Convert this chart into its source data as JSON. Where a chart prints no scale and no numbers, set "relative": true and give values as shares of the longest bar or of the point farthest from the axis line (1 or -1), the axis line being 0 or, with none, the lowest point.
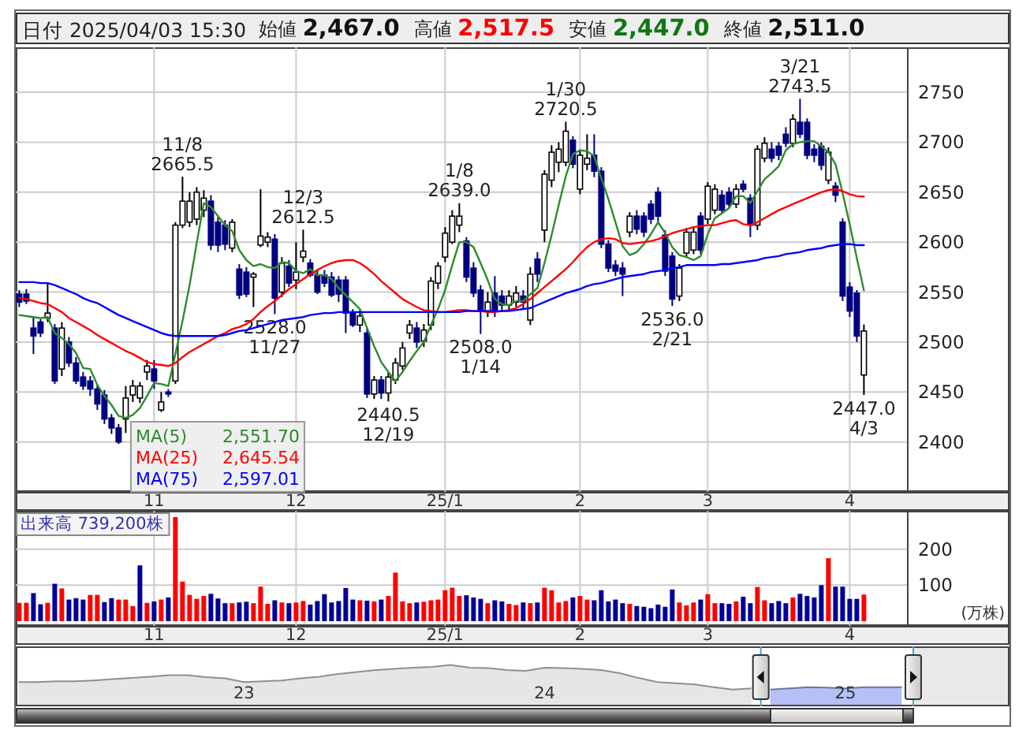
{
  "chart_data": [
    {
      "type": "candlestick",
      "title": "日付 2025/04/03 15:30",
      "annotations": [
        "始値 **2,467.0**",
        "高値 **2,517.5**",
        "安値 **2,447.0**",
        "終値 **2,511.0**",
        {
          "text": "11/8",
          "y": 2665.5
        },
        {
          "text": "2665.5",
          "y": 2665.5
        },
        {
          "text": "2528.0",
          "y": 2528.0
        },
        {
          "text": "11/27",
          "y": 2528.0
        },
        {
          "text": "12/3",
          "y": 2612.5
        },
        {
          "text": "2612.5",
          "y": 2612.5
        },
        {
          "text": "2440.5",
          "y": 2440.5
        },
        {
          "text": "12/19",
          "y": 2440.5
        },
        {
          "text": "1/8",
          "y": 2639.0
        },
        {
          "text": "2639.0",
          "y": 2639.0
        },
        {
          "text": "2508.0",
          "y": 2508.0
        },
        {
          "text": "1/14",
          "y": 2508.0
        },
        {
          "text": "1/30",
          "y": 2720.5
        },
        {
          "text": "2720.5",
          "y": 2720.5
        },
        {
          "text": "2536.0",
          "y": 2536.0
        },
        {
          "text": "2/21",
          "y": 2536.0
        },
        {
          "text": "3/21",
          "y": 2743.5
        },
        {
          "text": "2743.5",
          "y": 2743.5
        },
        {
          "text": "2447.0",
          "y": 2447.0
        },
        {
          "text": "4/3",
          "y": 2447.0
        }
      ],
      "categories": [
        null,
        null,
        null,
        null,
        null,
        null,
        null,
        null,
        null,
        null,
        null,
        null,
        null,
        null,
        null,
        null,
        null,
        null,
        null,
        "11",
        null,
        null,
        null,
        null,
        null,
        null,
        null,
        null,
        null,
        null,
        null,
        null,
        null,
        null,
        null,
        null,
        null,
        null,
        null,
        "12",
        null,
        null,
        null,
        null,
        null,
        null,
        null,
        null,
        null,
        null,
        null,
        null,
        null,
        null,
        null,
        null,
        null,
        null,
        null,
        null,
        "25/1",
        null,
        null,
        null,
        null,
        null,
        null,
        null,
        null,
        null,
        null,
        null,
        null,
        null,
        null,
        null,
        null,
        null,
        null,
        "2",
        null,
        null,
        null,
        null,
        null,
        null,
        null,
        null,
        null,
        null,
        null,
        null,
        null,
        null,
        null,
        null,
        null,
        "3",
        null,
        null,
        null,
        null,
        null,
        null,
        null,
        null,
        null,
        null,
        null,
        null,
        null,
        null,
        null,
        null,
        null,
        null,
        null,
        "4",
        null,
        null
      ],
      "ohlc": [
        [
          2548,
          2552,
          2535,
          2540
        ],
        [
          2548,
          2553,
          2538,
          2541
        ],
        [
          2514,
          2526,
          2488,
          2506
        ],
        [
          2520,
          2523,
          2505,
          2509
        ],
        [
          2524,
          2560,
          2520,
          2529
        ],
        [
          2514,
          2518,
          2458,
          2461
        ],
        [
          2473,
          2520,
          2466,
          2514
        ],
        [
          2500,
          2505,
          2475,
          2479
        ],
        [
          2479,
          2485,
          2458,
          2461
        ],
        [
          2465,
          2470,
          2452,
          2456
        ],
        [
          2461,
          2466,
          2446,
          2453
        ],
        [
          2453,
          2458,
          2432,
          2438
        ],
        [
          2447,
          2452,
          2418,
          2423
        ],
        [
          2424,
          2428,
          2408,
          2414
        ],
        [
          2414,
          2418,
          2398,
          2400
        ],
        [
          2423,
          2456,
          2409,
          2444
        ],
        [
          2447,
          2462,
          2440,
          2456
        ],
        [
          2444,
          2460,
          2439,
          2456
        ],
        [
          2470,
          2482,
          2462,
          2476
        ],
        [
          2473,
          2482,
          2453,
          2461
        ],
        [
          2432,
          2450,
          2430,
          2440
        ],
        [
          2450,
          2453,
          2445,
          2448
        ],
        [
          2461,
          2620,
          2458,
          2617
        ],
        [
          2617,
          2665.5,
          2614,
          2641
        ],
        [
          2620,
          2650,
          2615,
          2641
        ],
        [
          2623,
          2655,
          2617,
          2650
        ],
        [
          2632,
          2652,
          2625,
          2644
        ],
        [
          2641,
          2647,
          2592,
          2597
        ],
        [
          2620,
          2625,
          2590,
          2597
        ],
        [
          2617,
          2622,
          2592,
          2598
        ],
        [
          2594,
          2623,
          2590,
          2620
        ],
        [
          2573,
          2578,
          2543,
          2547
        ],
        [
          2570,
          2575,
          2545,
          2548
        ],
        [
          2565,
          2570,
          2535,
          2568
        ],
        [
          2597,
          2653,
          2595,
          2606
        ],
        [
          2600,
          2610,
          2595,
          2605
        ],
        [
          2603,
          2608,
          2528.0,
          2544
        ],
        [
          2550,
          2585,
          2545,
          2579
        ],
        [
          2576,
          2582,
          2555,
          2559
        ],
        [
          2562,
          2600,
          2553,
          2570
        ],
        [
          2585,
          2612.5,
          2580,
          2591
        ],
        [
          2579,
          2583,
          2565,
          2567
        ],
        [
          2567,
          2572,
          2548,
          2550
        ],
        [
          2567,
          2572,
          2555,
          2559
        ],
        [
          2565,
          2570,
          2545,
          2547
        ],
        [
          2562,
          2566,
          2540,
          2548
        ],
        [
          2562,
          2566,
          2509,
          2529
        ],
        [
          2529,
          2533,
          2515,
          2517
        ],
        [
          2517,
          2532,
          2510,
          2526
        ],
        [
          2509,
          2514,
          2444,
          2448
        ],
        [
          2448,
          2466,
          2443,
          2462
        ],
        [
          2462,
          2466,
          2443,
          2449
        ],
        [
          2449,
          2470,
          2440.5,
          2465
        ],
        [
          2462,
          2484,
          2458,
          2479
        ],
        [
          2476,
          2500,
          2472,
          2494
        ],
        [
          2509,
          2522,
          2503,
          2517
        ],
        [
          2514,
          2520,
          2494,
          2500
        ],
        [
          2501,
          2518,
          2495,
          2512
        ],
        [
          2517,
          2565,
          2512,
          2561
        ],
        [
          2559,
          2580,
          2553,
          2576
        ],
        [
          2585,
          2615,
          2580,
          2609
        ],
        [
          2600,
          2632,
          2598,
          2626
        ],
        [
          2617,
          2639.0,
          2610,
          2626
        ],
        [
          2601,
          2605,
          2560,
          2565
        ],
        [
          2574,
          2580,
          2545,
          2549
        ],
        [
          2552,
          2557,
          2508.0,
          2531
        ],
        [
          2531,
          2550,
          2525,
          2540
        ],
        [
          2549,
          2566,
          2525,
          2531
        ],
        [
          2546,
          2552,
          2530,
          2537
        ],
        [
          2537,
          2552,
          2532,
          2546
        ],
        [
          2540,
          2556,
          2535,
          2549
        ],
        [
          2546,
          2552,
          2533,
          2540
        ],
        [
          2522,
          2575,
          2517,
          2568
        ],
        [
          2583,
          2590,
          2560,
          2568
        ],
        [
          2612,
          2672,
          2600,
          2668
        ],
        [
          2662,
          2697,
          2655,
          2690
        ],
        [
          2680,
          2700,
          2670,
          2693
        ],
        [
          2680,
          2720.5,
          2676,
          2711
        ],
        [
          2702,
          2706,
          2674,
          2678
        ],
        [
          2653,
          2692,
          2648,
          2687
        ],
        [
          2678,
          2708,
          2672,
          2684
        ],
        [
          2687,
          2708,
          2665,
          2671
        ],
        [
          2671,
          2675,
          2594,
          2598
        ],
        [
          2598,
          2602,
          2570,
          2574
        ],
        [
          2577,
          2582,
          2566,
          2571
        ],
        [
          2574,
          2580,
          2546,
          2568
        ],
        [
          2610,
          2630,
          2605,
          2626
        ],
        [
          2626,
          2632,
          2608,
          2613
        ],
        [
          2626,
          2630,
          2605,
          2610
        ],
        [
          2638,
          2642,
          2618,
          2623
        ],
        [
          2650,
          2655,
          2620,
          2626
        ],
        [
          2607,
          2612,
          2566,
          2571
        ],
        [
          2586,
          2590,
          2536.0,
          2543
        ],
        [
          2546,
          2578,
          2541,
          2574
        ],
        [
          2589,
          2614,
          2585,
          2610
        ],
        [
          2592,
          2615,
          2588,
          2610
        ],
        [
          2626,
          2630,
          2588,
          2592
        ],
        [
          2623,
          2660,
          2618,
          2656
        ],
        [
          2632,
          2658,
          2628,
          2653
        ],
        [
          2647,
          2652,
          2628,
          2632
        ],
        [
          2650,
          2655,
          2634,
          2638
        ],
        [
          2638,
          2658,
          2634,
          2653
        ],
        [
          2658,
          2662,
          2650,
          2653
        ],
        [
          2644,
          2648,
          2605,
          2617
        ],
        [
          2617,
          2697,
          2612,
          2693
        ],
        [
          2684,
          2705,
          2680,
          2699
        ],
        [
          2693,
          2700,
          2680,
          2684
        ],
        [
          2696,
          2700,
          2682,
          2687
        ],
        [
          2708,
          2715,
          2695,
          2699
        ],
        [
          2699,
          2728,
          2695,
          2723
        ],
        [
          2720,
          2743.5,
          2704,
          2708
        ],
        [
          2720,
          2724,
          2683,
          2687
        ],
        [
          2693,
          2698,
          2680,
          2687
        ],
        [
          2696,
          2700,
          2672,
          2677
        ],
        [
          2662,
          2695,
          2658,
          2690
        ],
        [
          2656,
          2660,
          2640,
          2647
        ],
        [
          2620,
          2624,
          2541,
          2546
        ],
        [
          2555,
          2560,
          2525,
          2531
        ],
        [
          2549,
          2552,
          2500,
          2506
        ],
        [
          2467.0,
          2517.5,
          2447.0,
          2511.0
        ]
      ],
      "series": [
        {
          "name": "MA(5)    2,551.70",
          "type": "line",
          "color": "#2e8b2e",
          "values": [
            2527,
            2526,
            2525,
            2524,
            2525,
            2509,
            2504,
            2498,
            2489,
            2474,
            2473,
            2457,
            2446,
            2437,
            2426,
            2424,
            2427,
            2434,
            2446,
            2459,
            2458,
            2456,
            2488,
            2521,
            2557,
            2599,
            2639,
            2635,
            2626,
            2617,
            2611,
            2592,
            2582,
            2576,
            2578,
            2575,
            2574,
            2580,
            2579,
            2571,
            2569,
            2573,
            2567,
            2567,
            2563,
            2554,
            2547,
            2540,
            2533,
            2514,
            2496,
            2480,
            2470,
            2461,
            2470,
            2481,
            2491,
            2500,
            2517,
            2533,
            2552,
            2577,
            2600,
            2600,
            2595,
            2579,
            2562,
            2543,
            2538,
            2537,
            2541,
            2541,
            2548,
            2554,
            2579,
            2607,
            2637,
            2666,
            2688,
            2692,
            2691,
            2686,
            2664,
            2643,
            2620,
            2596,
            2587,
            2590,
            2598,
            2608,
            2620,
            2609,
            2595,
            2587,
            2585,
            2582,
            2586,
            2608,
            2624,
            2629,
            2634,
            2646,
            2646,
            2639,
            2651,
            2663,
            2669,
            2676,
            2692,
            2698,
            2700,
            2701,
            2701,
            2696,
            2690,
            2678,
            2649,
            2618,
            2584,
            2551.7
          ]
        },
        {
          "name": "MA(25)  2,645.54",
          "type": "line",
          "color": "#ff0000",
          "values": [
            2544,
            2543,
            2541,
            2539,
            2538,
            2534,
            2530,
            2524,
            2520,
            2516,
            2512,
            2507,
            2503,
            2499,
            2495,
            2491,
            2488,
            2484,
            2480,
            2478,
            2477,
            2476,
            2479,
            2485,
            2490,
            2494,
            2498,
            2502,
            2506,
            2509,
            2513,
            2515,
            2518,
            2523,
            2530,
            2536,
            2541,
            2547,
            2553,
            2558,
            2563,
            2568,
            2572,
            2576,
            2579,
            2581,
            2582,
            2582,
            2579,
            2574,
            2568,
            2561,
            2555,
            2549,
            2543,
            2539,
            2535,
            2532,
            2531,
            2530,
            2530,
            2531,
            2532,
            2532,
            2531,
            2531,
            2530,
            2530,
            2531,
            2532,
            2534,
            2538,
            2543,
            2549,
            2555,
            2561,
            2567,
            2573,
            2580,
            2588,
            2595,
            2600,
            2603,
            2604,
            2603,
            2599,
            2598,
            2599,
            2600,
            2601,
            2603,
            2606,
            2609,
            2611,
            2613,
            2615,
            2616,
            2617,
            2617,
            2619,
            2621,
            2622,
            2618,
            2617,
            2620,
            2624,
            2628,
            2632,
            2635,
            2638,
            2641,
            2644,
            2647,
            2650,
            2652,
            2653,
            2651,
            2648,
            2646,
            2645.54
          ]
        },
        {
          "name": "MA(75)  2,597.01",
          "type": "line",
          "color": "#0000ff",
          "values": [
            2560,
            2560,
            2560,
            2559,
            2559,
            2557,
            2554,
            2551,
            2548,
            2544,
            2541,
            2539,
            2535,
            2531,
            2527,
            2524,
            2521,
            2518,
            2515,
            2512,
            2509,
            2507,
            2506,
            2506,
            2506,
            2506,
            2506,
            2506,
            2506,
            2507,
            2509,
            2511,
            2512,
            2514,
            2516,
            2518,
            2520,
            2522,
            2523,
            2524,
            2525,
            2527,
            2528,
            2529,
            2529,
            2530,
            2530,
            2530,
            2530,
            2530,
            2530,
            2530,
            2530,
            2530,
            2530,
            2530,
            2530,
            2530,
            2530,
            2530,
            2530,
            2530,
            2530,
            2531,
            2531,
            2531,
            2531,
            2531,
            2531,
            2531,
            2532,
            2533,
            2534,
            2537,
            2540,
            2543,
            2546,
            2549,
            2551,
            2553,
            2556,
            2558,
            2559,
            2561,
            2563,
            2565,
            2566,
            2567,
            2568,
            2570,
            2571,
            2572,
            2574,
            2575,
            2577,
            2577,
            2577,
            2577,
            2577,
            2578,
            2578,
            2579,
            2580,
            2581,
            2582,
            2584,
            2585,
            2586,
            2588,
            2589,
            2590,
            2592,
            2593,
            2594,
            2596,
            2597,
            2598,
            2598,
            2597,
            2597.01
          ]
        }
      ],
      "ylim": [
        2350,
        2795
      ],
      "yticks": [
        2400,
        2450,
        2500,
        2550,
        2600,
        2650,
        2700,
        2750
      ],
      "grid": true
    },
    {
      "type": "bar",
      "title": "出来高 739,200株",
      "ylabel": "(万株)",
      "categories": [
        null,
        null,
        null,
        null,
        null,
        null,
        null,
        null,
        null,
        null,
        null,
        null,
        null,
        null,
        null,
        null,
        null,
        null,
        null,
        "11",
        null,
        null,
        null,
        null,
        null,
        null,
        null,
        null,
        null,
        null,
        null,
        null,
        null,
        null,
        null,
        null,
        null,
        null,
        null,
        "12",
        null,
        null,
        null,
        null,
        null,
        null,
        null,
        null,
        null,
        null,
        null,
        null,
        null,
        null,
        null,
        null,
        null,
        null,
        null,
        null,
        "25/1",
        null,
        null,
        null,
        null,
        null,
        null,
        null,
        null,
        null,
        null,
        null,
        null,
        null,
        null,
        null,
        null,
        null,
        null,
        "2",
        null,
        null,
        null,
        null,
        null,
        null,
        null,
        null,
        null,
        null,
        null,
        null,
        null,
        null,
        null,
        null,
        null,
        "3",
        null,
        null,
        null,
        null,
        null,
        null,
        null,
        null,
        null,
        null,
        null,
        null,
        null,
        null,
        null,
        null,
        null,
        null,
        null,
        "4",
        null,
        null
      ],
      "values": [
        51,
        51,
        78,
        47,
        51,
        104,
        91,
        60,
        64,
        60,
        73,
        73,
        53,
        64,
        60,
        60,
        42,
        155,
        51,
        55,
        60,
        66,
        289,
        110,
        73,
        62,
        70,
        76,
        63,
        50,
        50,
        52,
        54,
        50,
        96,
        48,
        58,
        52,
        50,
        52,
        56,
        46,
        56,
        75,
        52,
        56,
        92,
        60,
        58,
        57,
        55,
        60,
        70,
        135,
        55,
        50,
        52,
        54,
        58,
        60,
        86,
        93,
        70,
        72,
        66,
        62,
        50,
        58,
        55,
        48,
        45,
        52,
        50,
        52,
        93,
        86,
        52,
        56,
        66,
        70,
        60,
        58,
        86,
        55,
        60,
        50,
        48,
        42,
        40,
        36,
        46,
        40,
        88,
        52,
        44,
        52,
        60,
        75,
        50,
        50,
        48,
        55,
        68,
        50,
        95,
        58,
        50,
        56,
        50,
        66,
        76,
        70,
        66,
        100,
        175,
        96,
        96,
        62,
        62,
        73.92
      ],
      "colors": [
        "#ff0000",
        "#ff0000",
        "#000099",
        "#000099",
        "#ff0000",
        "#000099",
        "#ff0000",
        "#000099",
        "#000099",
        "#000099",
        "#ff0000",
        "#ff0000",
        "#000099",
        "#000099",
        "#ff0000",
        "#ff0000",
        "#ff0000",
        "#000099",
        "#ff0000",
        "#000099",
        "#ff0000",
        "#000099",
        "#ff0000",
        "#ff0000",
        "#ff0000",
        "#ff0000",
        "#ff0000",
        "#000099",
        "#000099",
        "#000099",
        "#ff0000",
        "#000099",
        "#000099",
        "#ff0000",
        "#ff0000",
        "#ff0000",
        "#000099",
        "#ff0000",
        "#000099",
        "#ff0000",
        "#ff0000",
        "#000099",
        "#000099",
        "#000099",
        "#000099",
        "#000099",
        "#000099",
        "#000099",
        "#ff0000",
        "#000099",
        "#ff0000",
        "#000099",
        "#ff0000",
        "#ff0000",
        "#ff0000",
        "#ff0000",
        "#000099",
        "#ff0000",
        "#ff0000",
        "#ff0000",
        "#ff0000",
        "#ff0000",
        "#ff0000",
        "#000099",
        "#000099",
        "#000099",
        "#ff0000",
        "#000099",
        "#000099",
        "#ff0000",
        "#ff0000",
        "#000099",
        "#ff0000",
        "#000099",
        "#ff0000",
        "#ff0000",
        "#ff0000",
        "#ff0000",
        "#000099",
        "#ff0000",
        "#ff0000",
        "#000099",
        "#000099",
        "#000099",
        "#000099",
        "#000099",
        "#ff0000",
        "#000099",
        "#000099",
        "#000099",
        "#000099",
        "#000099",
        "#000099",
        "#ff0000",
        "#ff0000",
        "#ff0000",
        "#000099",
        "#ff0000",
        "#ff0000",
        "#000099",
        "#000099",
        "#ff0000",
        "#000099",
        "#000099",
        "#ff0000",
        "#ff0000",
        "#000099",
        "#000099",
        "#000099",
        "#ff0000",
        "#000099",
        "#000099",
        "#000099",
        "#000099",
        "#ff0000",
        "#000099",
        "#000099",
        "#000099",
        "#000099",
        "#ff0000"
      ],
      "ylim": [
        0,
        300
      ],
      "yticks": [
        100,
        200
      ],
      "grid": true
    },
    {
      "type": "area",
      "relative": true,
      "tick_labels": "x",
      "categories": [
        null,
        null,
        null,
        null,
        null,
        null,
        null,
        null,
        null,
        null,
        null,
        null,
        "23",
        null,
        null,
        null,
        null,
        null,
        null,
        null,
        null,
        null,
        null,
        null,
        null,
        null,
        null,
        null,
        "24",
        null,
        null,
        null,
        null,
        null,
        null,
        null,
        null,
        null,
        null,
        null,
        null,
        null,
        null,
        null,
        "25",
        null,
        null,
        null
      ],
      "series": [
        {
          "color": "#e6e6e6",
          "values": [
            0.57,
            0.57,
            0.59,
            0.59,
            0.61,
            0.64,
            0.67,
            0.7,
            0.74,
            0.74,
            0.69,
            0.66,
            0.57,
            0.59,
            0.61,
            0.66,
            0.7,
            0.77,
            0.82,
            0.87,
            0.9,
            0.93,
            0.95,
            1,
            0.93,
            0.92,
            0.87,
            0.85,
            0.93,
            0.92,
            0.9,
            0.87,
            0.79,
            0.67,
            0.57,
            0.54,
            0.51,
            0.44,
            0.38,
            0.41,
            null,
            null,
            null,
            null,
            null,
            null,
            null,
            null
          ]
        },
        {
          "color": "#b4c0f6",
          "values": [
            null,
            null,
            null,
            null,
            null,
            null,
            null,
            null,
            null,
            null,
            null,
            null,
            null,
            null,
            null,
            null,
            null,
            null,
            null,
            null,
            null,
            null,
            null,
            null,
            null,
            null,
            null,
            null,
            null,
            null,
            null,
            null,
            null,
            null,
            null,
            null,
            null,
            null,
            null,
            null,
            0.38,
            0.41,
            0.44,
            0.43,
            0.41,
            0.44,
            0.44,
            0.44
          ]
        }
      ]
    }
  ]
}
